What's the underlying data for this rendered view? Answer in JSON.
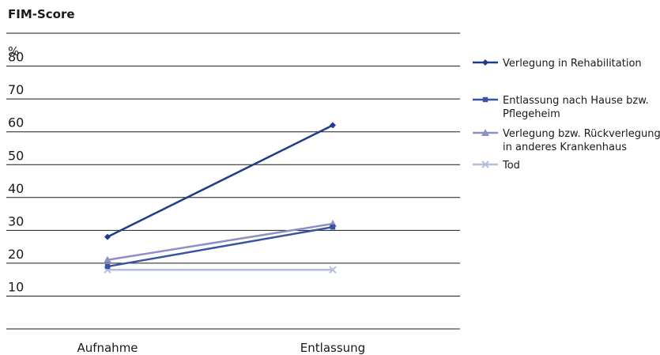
{
  "chart_data": {
    "type": "line",
    "title": "FIM-Score",
    "unit_label": "%",
    "categories": [
      "Aufnahme",
      "Entlassung"
    ],
    "ylim": [
      0,
      90
    ],
    "yticks": [
      10,
      20,
      30,
      40,
      50,
      60,
      70,
      80
    ],
    "grid": true,
    "legend_position": "right",
    "series": [
      {
        "name": "Verlegung in Rehabilitation",
        "values": [
          28,
          62
        ],
        "color": "#1f3c8c",
        "marker": "diamond"
      },
      {
        "name": "Entlassung nach Hause bzw. Pflegeheim",
        "values": [
          19,
          31
        ],
        "color": "#3a52a3",
        "marker": "square"
      },
      {
        "name": "Verlegung bzw. Rückverlegung in anderes Krankenhaus",
        "values": [
          21,
          32
        ],
        "color": "#8f8fc8",
        "marker": "triangle"
      },
      {
        "name": "Tod",
        "values": [
          18,
          18
        ],
        "color": "#b7bde0",
        "marker": "x"
      }
    ]
  }
}
